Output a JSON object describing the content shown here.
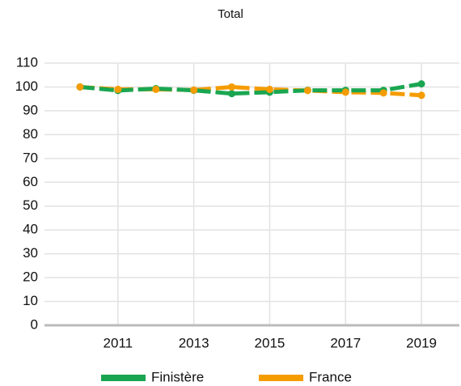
{
  "chart_data": {
    "type": "line",
    "title": "Total",
    "x": [
      2010,
      2011,
      2012,
      2013,
      2014,
      2015,
      2016,
      2017,
      2018,
      2019
    ],
    "series": [
      {
        "name": "Finistère",
        "color": "#1aa651",
        "values": [
          100,
          98.5,
          99.3,
          98.6,
          97.2,
          97.8,
          98.6,
          98.6,
          98.6,
          101.3
        ]
      },
      {
        "name": "France",
        "color": "#f59c00",
        "values": [
          100,
          99,
          99,
          98.7,
          100,
          99,
          98.5,
          97.8,
          97.5,
          96.5
        ]
      }
    ],
    "xlim": [
      2009,
      2020
    ],
    "xticks": [
      2011,
      2013,
      2015,
      2017,
      2019
    ],
    "ylim": [
      0,
      110
    ],
    "yticks": [
      0,
      10,
      20,
      30,
      40,
      50,
      60,
      70,
      80,
      90,
      100,
      110
    ],
    "grid": true,
    "legend": "bottom"
  }
}
